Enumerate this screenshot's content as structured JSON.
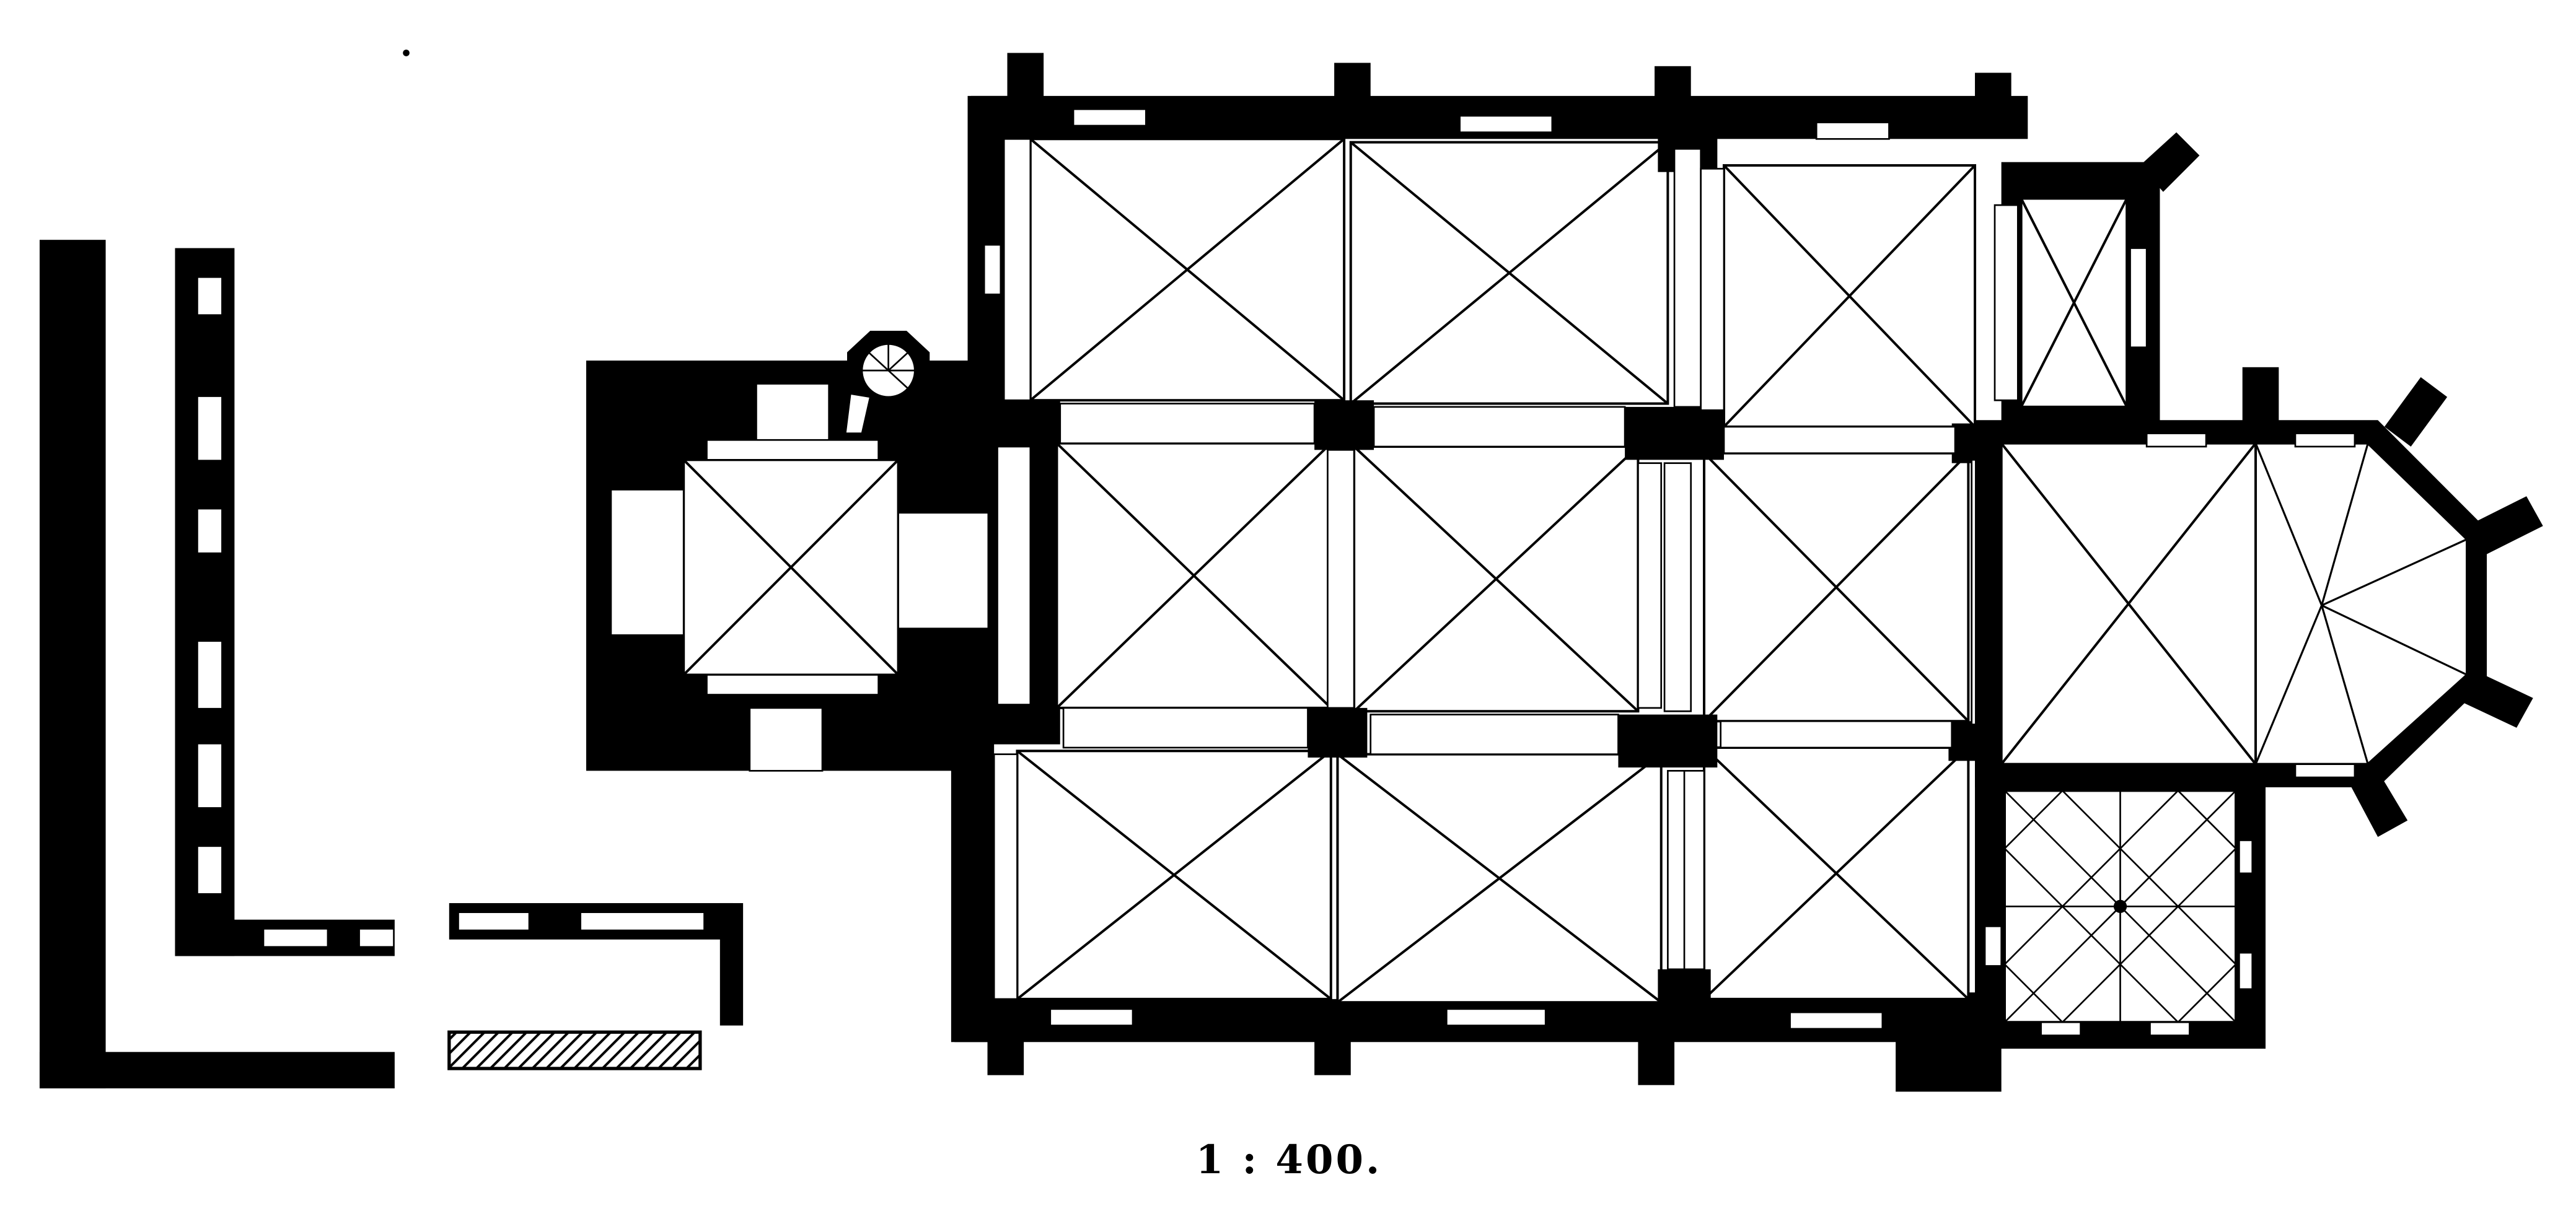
{
  "figure": {
    "scale_label": "1 : 400."
  },
  "colors": {
    "ink": "#000000",
    "paper": "#ffffff",
    "hatch": "#7a7a7a"
  }
}
